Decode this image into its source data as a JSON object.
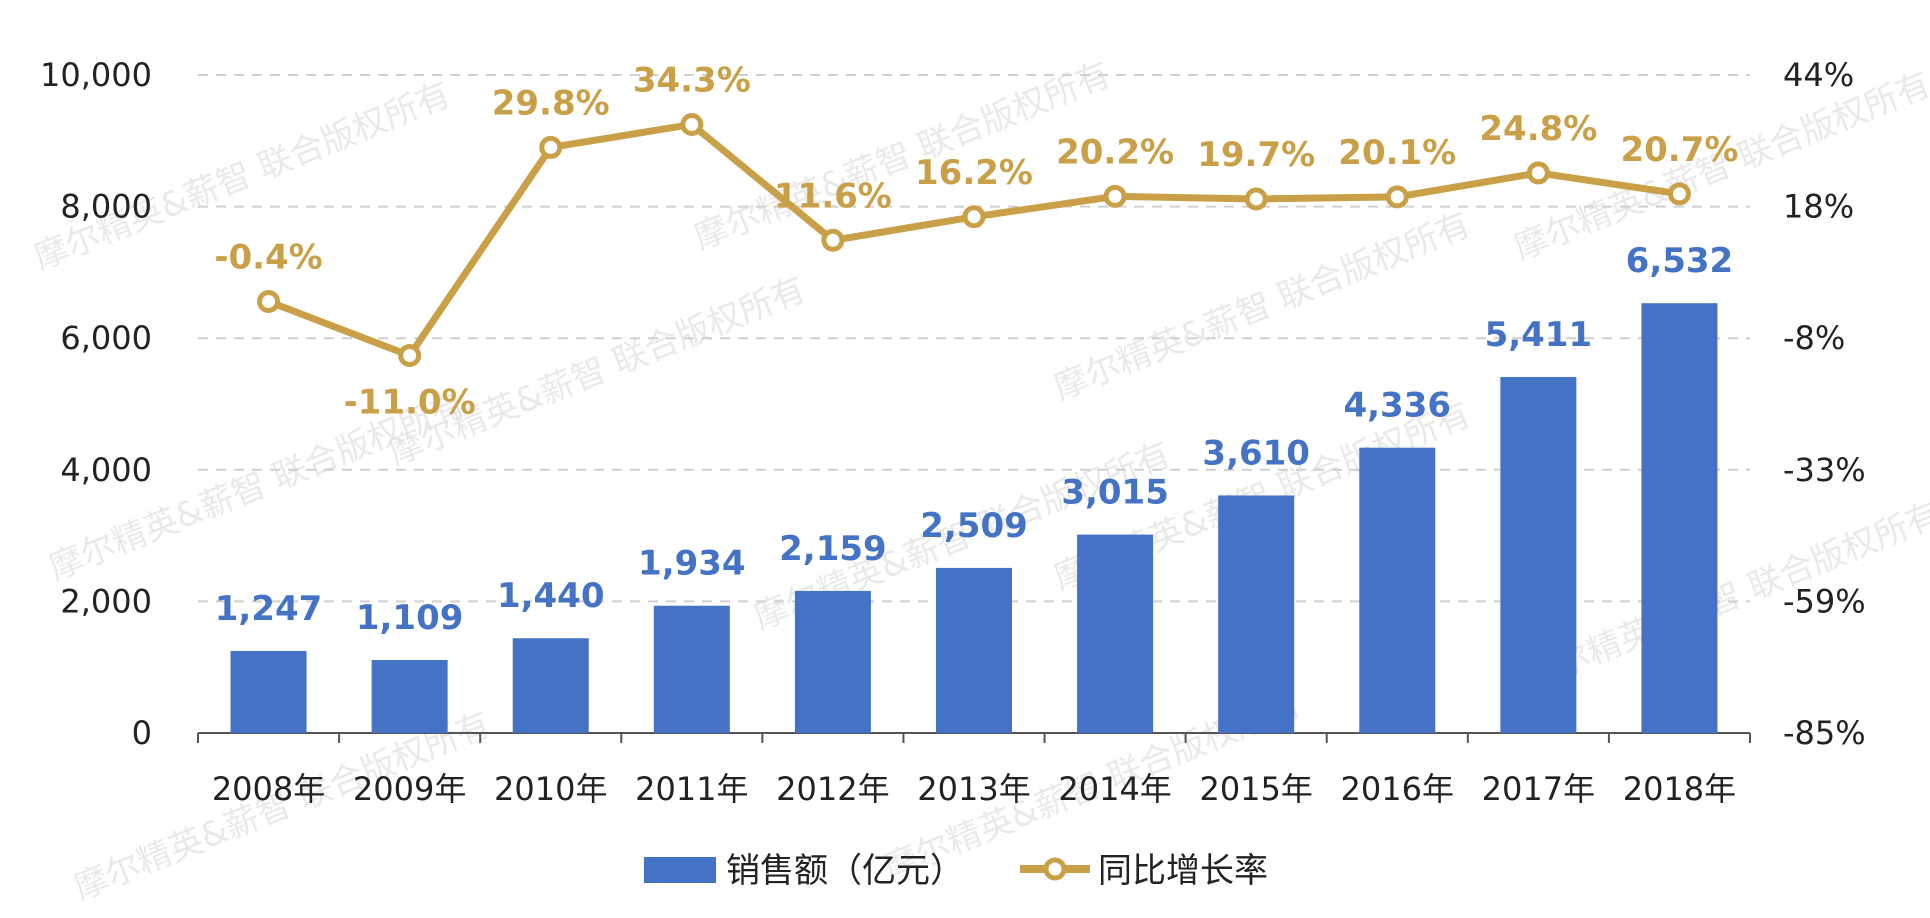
{
  "chart_data": {
    "type": "bar",
    "categories": [
      "2008年",
      "2009年",
      "2010年",
      "2011年",
      "2012年",
      "2013年",
      "2014年",
      "2015年",
      "2016年",
      "2017年",
      "2018年"
    ],
    "series": [
      {
        "name": "销售额（亿元）",
        "type": "bar",
        "axis": "left",
        "values": [
          1247,
          1109,
          1440,
          1934,
          2159,
          2509,
          3015,
          3610,
          4336,
          5411,
          6532
        ],
        "labels": [
          "1,247",
          "1,109",
          "1,440",
          "1,934",
          "2,159",
          "2,509",
          "3,015",
          "3,610",
          "4,336",
          "5,411",
          "6,532"
        ],
        "color": "#4472C4"
      },
      {
        "name": "同比增长率",
        "type": "line",
        "axis": "right",
        "values": [
          -0.4,
          -11.0,
          29.8,
          34.3,
          11.6,
          16.2,
          20.2,
          19.7,
          20.1,
          24.8,
          20.7
        ],
        "labels": [
          "-0.4%",
          "-11.0%",
          "29.8%",
          "34.3%",
          "11.6%",
          "16.2%",
          "20.2%",
          "19.7%",
          "20.1%",
          "24.8%",
          "20.7%"
        ],
        "color": "#C9A047"
      }
    ],
    "left_axis": {
      "ylim": [
        0,
        10000
      ],
      "ticks": [
        0,
        2000,
        4000,
        6000,
        8000,
        10000
      ],
      "tick_labels": [
        "0",
        "2,000",
        "4,000",
        "6,000",
        "8,000",
        "10,000"
      ]
    },
    "right_axis": {
      "tick_labels": [
        "-85%",
        "-59%",
        "-33%",
        "-8%",
        "18%",
        "44%"
      ]
    },
    "grid": true,
    "legend_position": "bottom"
  },
  "legend": {
    "bar_label": "销售额（亿元）",
    "line_label": "同比增长率"
  },
  "watermark": {
    "text": "摩尔精英&薪智 联合版权所有"
  }
}
